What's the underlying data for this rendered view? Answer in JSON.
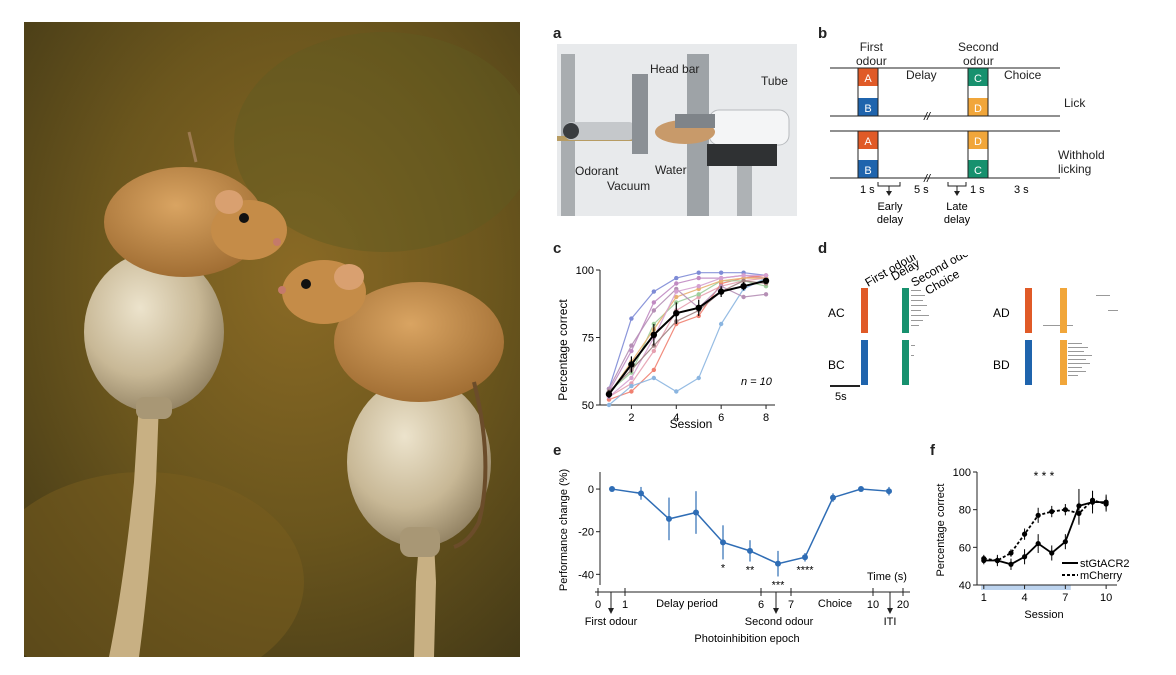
{
  "photo": {
    "description_icon": "harvest-mice-photo"
  },
  "panel_labels": {
    "a": "a",
    "b": "b",
    "c": "c",
    "d": "d",
    "e": "e",
    "f": "f"
  },
  "panel_a": {
    "labels": {
      "head_bar": "Head bar",
      "tube": "Tube",
      "odorant": "Odorant",
      "water": "Water",
      "vacuum": "Vacuum"
    }
  },
  "panel_b": {
    "first_odour": [
      "First",
      "odour"
    ],
    "second_odour": [
      "Second",
      "odour"
    ],
    "delay": "Delay",
    "choice": "Choice",
    "lick": "Lick",
    "withhold": [
      "Withhold",
      "licking"
    ],
    "boxes": {
      "a": "A",
      "b": "B",
      "c": "C",
      "d": "D"
    },
    "timing": {
      "t1": "1 s",
      "t5": "5 s",
      "t1b": "1 s",
      "t3": "3 s"
    },
    "early_delay": [
      "Early",
      "delay"
    ],
    "late_delay": [
      "Late",
      "delay"
    ],
    "colors": {
      "A": "#e05a27",
      "B": "#1f64ad",
      "C": "#17916e",
      "D": "#f1a63a"
    }
  },
  "panel_d": {
    "header": {
      "first": "First odour",
      "delay": "Delay",
      "second": "Second odour",
      "choice": "Choice"
    },
    "rows": {
      "ac": "AC",
      "bc": "BC",
      "ad": "AD",
      "bd": "BD"
    },
    "scale": "5s"
  },
  "chart_data": [
    {
      "id": "c",
      "type": "line",
      "xlabel": "Session",
      "ylabel": "Percentage correct",
      "xlim": [
        0.6,
        8.4
      ],
      "ylim": [
        50,
        100
      ],
      "xticks": [
        2,
        4,
        6,
        8
      ],
      "yticks": [
        50,
        75,
        100
      ],
      "annotation": "n = 10",
      "mean": {
        "x": [
          1,
          2,
          3,
          4,
          5,
          6,
          7,
          8
        ],
        "y": [
          54,
          65,
          76,
          84,
          86,
          92,
          94,
          96
        ],
        "err": [
          1.5,
          3,
          4,
          4,
          3,
          2,
          1.5,
          1
        ]
      },
      "individual": [
        {
          "color": "#7e8bd6",
          "y": [
            56,
            82,
            92,
            97,
            99,
            99,
            99,
            98
          ]
        },
        {
          "color": "#c08ac2",
          "y": [
            55,
            70,
            88,
            95,
            97,
            97,
            98,
            97
          ]
        },
        {
          "color": "#e5a0b0",
          "y": [
            53,
            58,
            70,
            85,
            90,
            94,
            96,
            97
          ]
        },
        {
          "color": "#f08070",
          "y": [
            52,
            55,
            63,
            80,
            83,
            95,
            97,
            98
          ]
        },
        {
          "color": "#8bb5e0",
          "y": [
            50,
            57,
            60,
            55,
            60,
            80,
            93,
            97
          ]
        },
        {
          "color": "#9fce9c",
          "y": [
            55,
            62,
            80,
            88,
            91,
            96,
            96,
            94
          ]
        },
        {
          "color": "#e8b070",
          "y": [
            54,
            66,
            78,
            90,
            93,
            96,
            97,
            97
          ]
        },
        {
          "color": "#b58fb5",
          "y": [
            56,
            72,
            85,
            93,
            86,
            94,
            90,
            91
          ]
        },
        {
          "color": "#d5a0d0",
          "y": [
            53,
            60,
            75,
            92,
            94,
            97,
            98,
            98
          ]
        },
        {
          "color": "#a08080",
          "y": [
            55,
            63,
            72,
            81,
            85,
            92,
            96,
            95
          ]
        }
      ]
    },
    {
      "id": "e",
      "type": "line",
      "ylabel": "Performance change (%)",
      "yticks": [
        0,
        -20,
        -40
      ],
      "ylim": [
        -45,
        8
      ],
      "x_time_label": "Time (s)",
      "xticks_labels": [
        "0",
        "1",
        "6",
        "7",
        "10",
        "20"
      ],
      "epochs": {
        "first": "First odour",
        "delay": "Delay period",
        "second": "Second odour",
        "choice": "Choice",
        "iti": "ITI"
      },
      "xlabel": "Photoinhibition epoch",
      "values": [
        0,
        -2,
        -14,
        -11,
        -25,
        -29,
        -35,
        -32,
        -4,
        0,
        -1
      ],
      "err": [
        0,
        3,
        10,
        10,
        8,
        5,
        6,
        2,
        2,
        0,
        2
      ],
      "sig": [
        "",
        "",
        "",
        "",
        "*",
        "**",
        "***",
        "****",
        "",
        "",
        ""
      ],
      "color": "#2f6db5"
    },
    {
      "id": "f",
      "type": "line",
      "xlabel": "Session",
      "ylabel": "Percentage correct",
      "xticks": [
        1,
        4,
        7,
        10
      ],
      "yticks": [
        40,
        60,
        80,
        100
      ],
      "ylim": [
        40,
        100
      ],
      "xlim": [
        0.5,
        10.8
      ],
      "stars": "* * *",
      "legend": [
        {
          "name": "stGtACR2",
          "style": "solid"
        },
        {
          "name": "mCherry",
          "style": "dashed"
        }
      ],
      "stgtacr2": {
        "x": [
          1,
          2,
          3,
          4,
          5,
          6,
          7,
          8,
          9,
          10
        ],
        "y": [
          53,
          53,
          51,
          55,
          62,
          57,
          63,
          82,
          84,
          84
        ],
        "err": [
          2,
          3,
          3,
          4,
          5,
          4,
          4,
          9,
          6,
          4
        ]
      },
      "mcherry": {
        "x": [
          1,
          2,
          3,
          4,
          5,
          6,
          7,
          8,
          9,
          10
        ],
        "y": [
          54,
          53,
          57,
          67,
          77,
          79,
          80,
          78,
          85,
          83
        ],
        "err": [
          2,
          2,
          2,
          3,
          4,
          3,
          3,
          6,
          5,
          4
        ]
      }
    }
  ]
}
